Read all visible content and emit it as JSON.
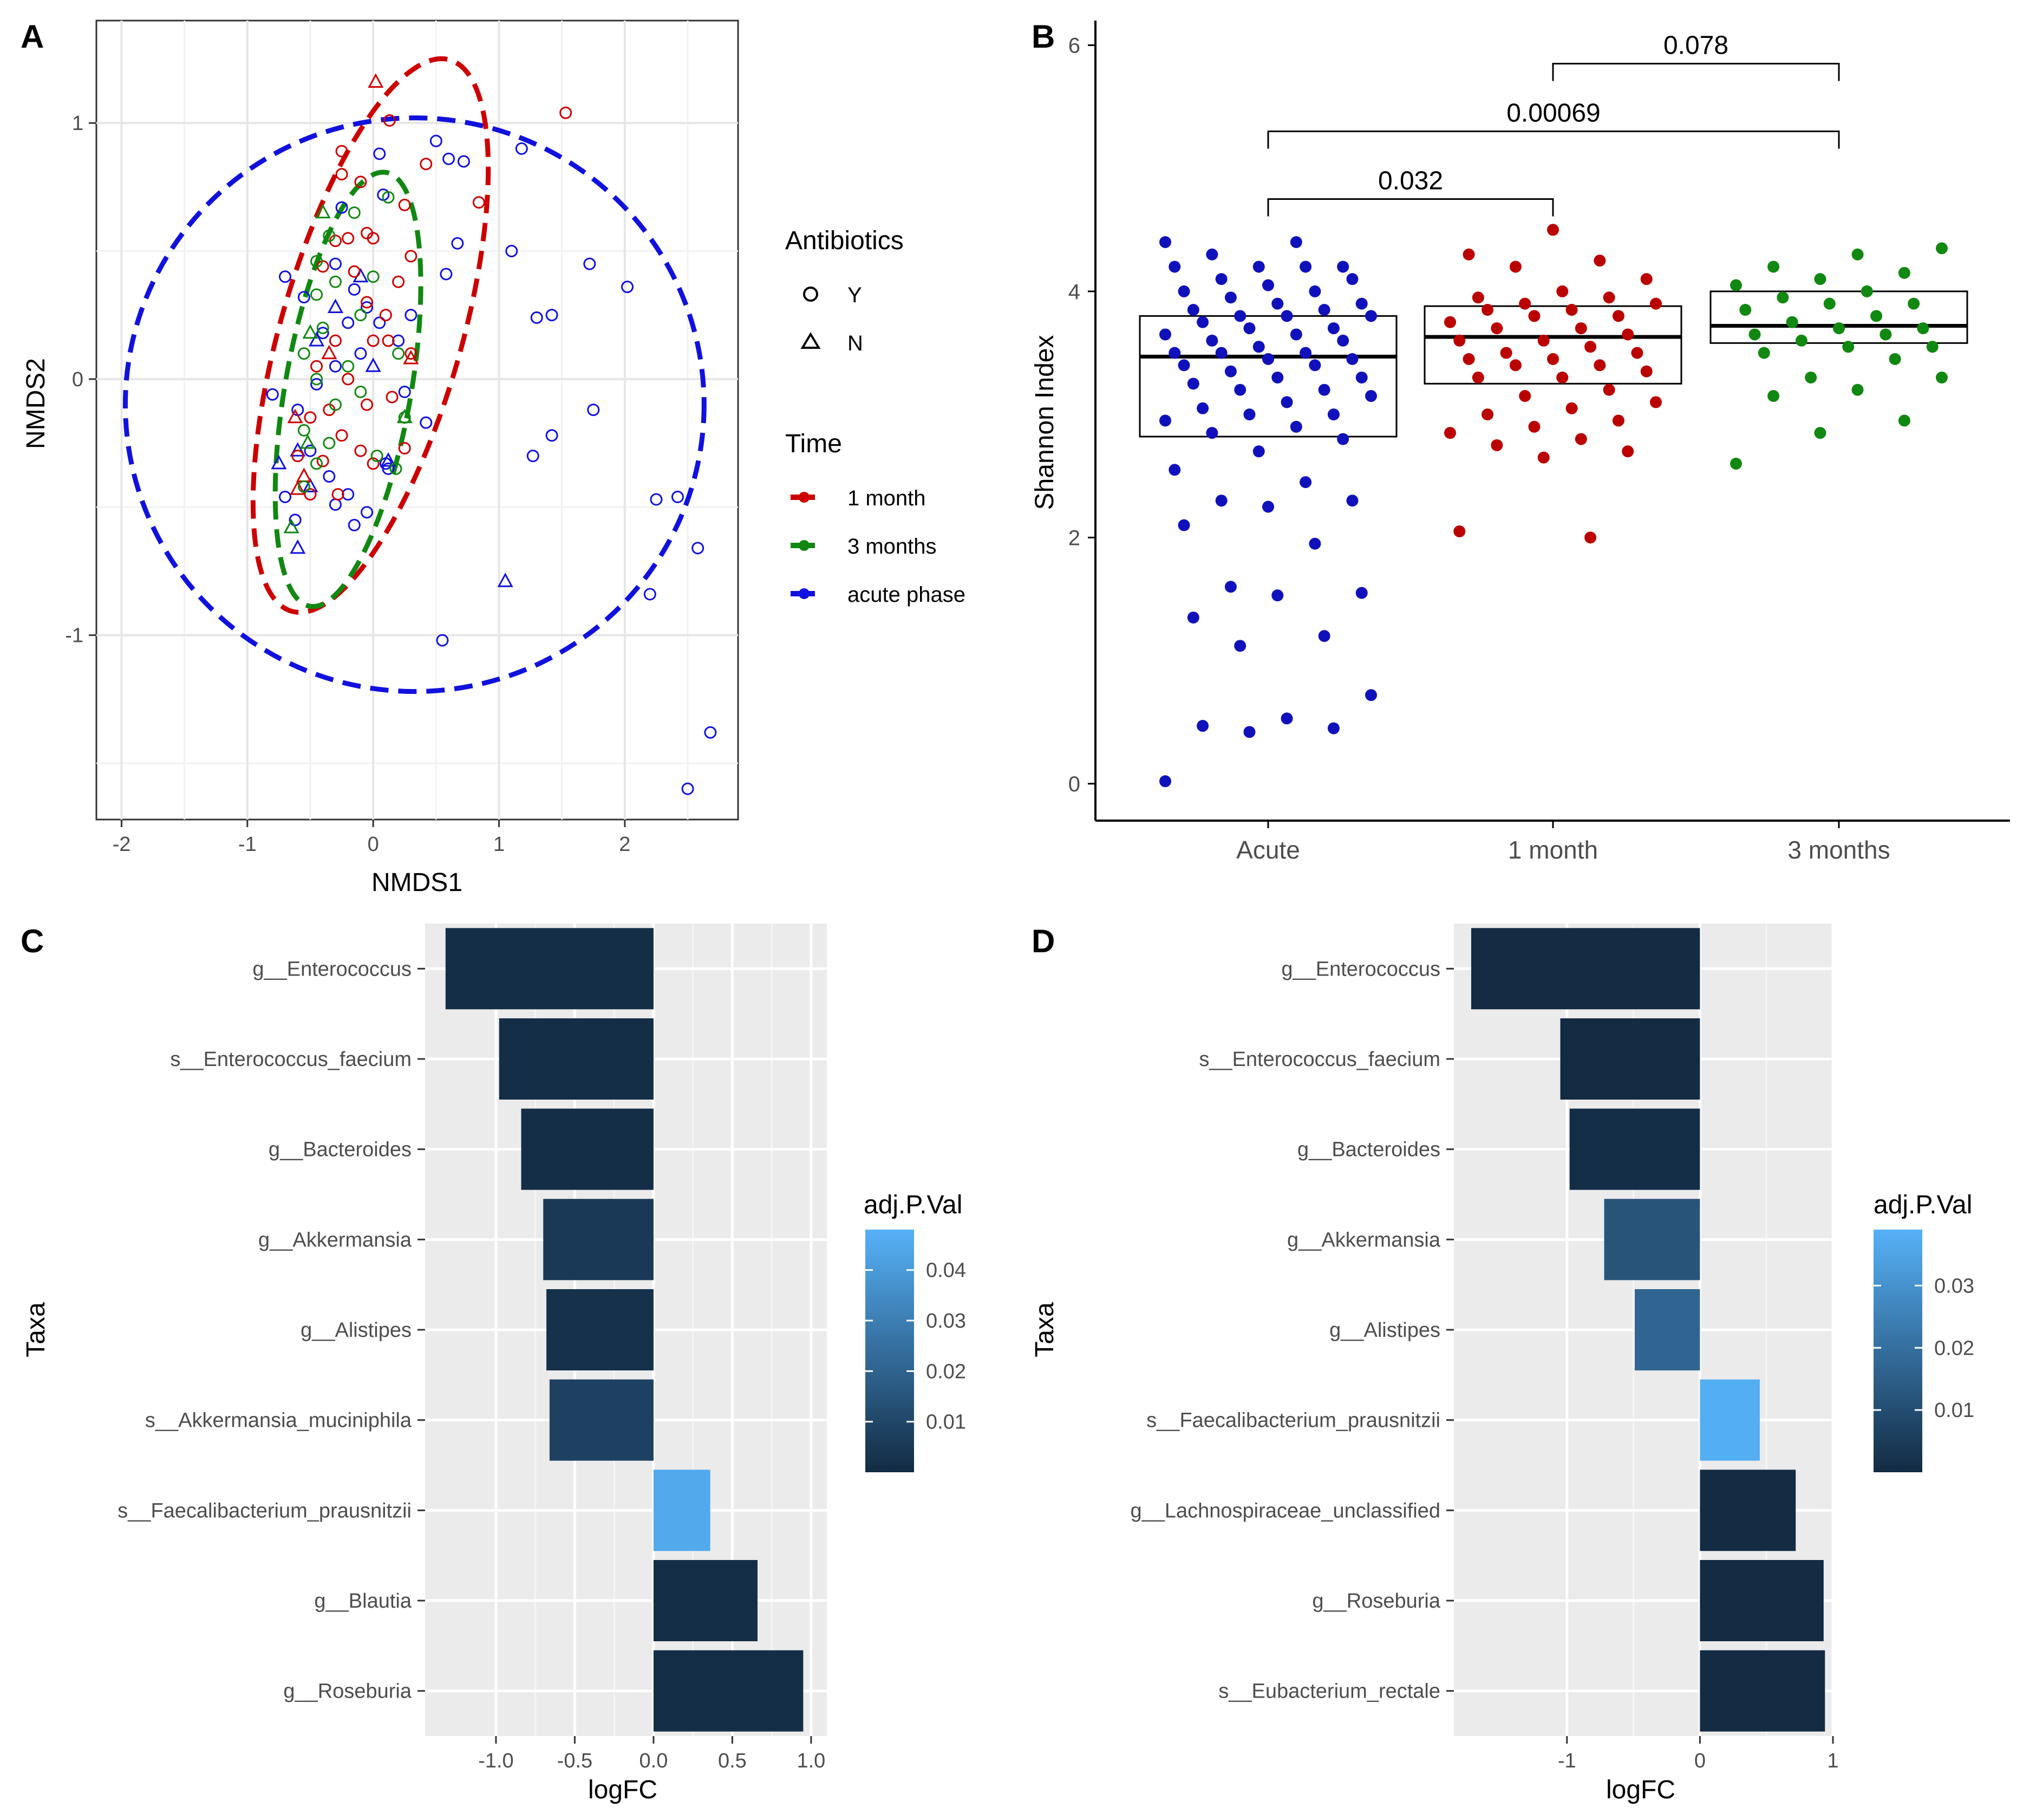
{
  "chart_data": [
    {
      "panel": "A",
      "type": "scatter",
      "xlabel": "NMDS1",
      "ylabel": "NMDS2",
      "xlim": [
        -2.2,
        2.9
      ],
      "ylim": [
        -1.72,
        1.4
      ],
      "xticks": [
        -2,
        -1,
        0,
        1,
        2
      ],
      "yticks": [
        -1,
        0,
        1
      ],
      "grid": true,
      "legend": {
        "antibiotics_title": "Antibiotics",
        "antibiotics": [
          {
            "label": "Y",
            "shape": "circle"
          },
          {
            "label": "N",
            "shape": "triangle"
          }
        ],
        "time_title": "Time",
        "time": [
          {
            "label": "1 month",
            "color": "#cc0000"
          },
          {
            "label": "3 months",
            "color": "#118811"
          },
          {
            "label": "acute phase",
            "color": "#1111dd"
          }
        ]
      },
      "ellipses": [
        {
          "series": "acute phase",
          "color": "#1111dd",
          "cx": 0.33,
          "cy": -0.1,
          "rx": 2.3,
          "ry": 1.12,
          "angle": 0
        },
        {
          "series": "1 month",
          "color": "#cc0000",
          "cx": -0.02,
          "cy": 0.17,
          "rx": 0.72,
          "ry": 1.12,
          "angle": 16
        },
        {
          "series": "3 months",
          "color": "#118811",
          "cx": -0.2,
          "cy": -0.04,
          "rx": 0.5,
          "ry": 0.86,
          "angle": 10
        }
      ],
      "series": [
        {
          "name": "acute phase",
          "color": "#1111dd",
          "points": [
            [
              0.5,
              0.93
            ],
            [
              0.6,
              0.86
            ],
            [
              0.72,
              0.85
            ],
            [
              1.18,
              0.9
            ],
            [
              0.05,
              0.88
            ],
            [
              0.58,
              0.41
            ],
            [
              0.67,
              0.53
            ],
            [
              1.1,
              0.5
            ],
            [
              1.72,
              0.45
            ],
            [
              2.02,
              0.36
            ],
            [
              1.3,
              0.24
            ],
            [
              1.42,
              0.25
            ],
            [
              1.75,
              -0.12
            ],
            [
              1.42,
              -0.22
            ],
            [
              1.27,
              -0.3
            ],
            [
              2.25,
              -0.47
            ],
            [
              2.42,
              -0.46
            ],
            [
              2.58,
              -0.66
            ],
            [
              2.2,
              -0.84
            ],
            [
              0.55,
              -1.02
            ],
            [
              2.68,
              -1.38
            ],
            [
              2.5,
              -1.6
            ],
            [
              -0.7,
              0.4
            ],
            [
              -0.55,
              0.32
            ],
            [
              -0.4,
              0.18
            ],
            [
              -0.3,
              0.45
            ],
            [
              -0.15,
              0.35
            ],
            [
              -0.05,
              0.28
            ],
            [
              0.05,
              0.22
            ],
            [
              0.2,
              0.15
            ],
            [
              0.3,
              0.25
            ],
            [
              0.42,
              -0.17
            ],
            [
              0.1,
              -0.33
            ],
            [
              0.25,
              -0.05
            ],
            [
              -0.2,
              0.22
            ],
            [
              -0.1,
              0.1
            ],
            [
              -0.3,
              0.05
            ],
            [
              -0.45,
              -0.02
            ],
            [
              -0.6,
              -0.12
            ],
            [
              -0.5,
              -0.28
            ],
            [
              -0.35,
              -0.38
            ],
            [
              -0.2,
              -0.45
            ],
            [
              -0.05,
              -0.52
            ],
            [
              -0.15,
              -0.57
            ],
            [
              -0.3,
              -0.49
            ],
            [
              -0.62,
              -0.55
            ],
            [
              -0.7,
              -0.46
            ],
            [
              -0.8,
              -0.06
            ],
            [
              0.08,
              0.72
            ],
            [
              -0.25,
              0.67
            ],
            [
              0.12,
              -0.35
            ]
          ],
          "triangles": [
            [
              -0.75,
              -0.33
            ],
            [
              -0.6,
              -0.28
            ],
            [
              -0.45,
              0.15
            ],
            [
              -0.3,
              0.28
            ],
            [
              -0.1,
              0.4
            ],
            [
              0.0,
              0.05
            ],
            [
              0.12,
              -0.32
            ],
            [
              -0.5,
              -0.42
            ],
            [
              -0.65,
              -0.58
            ],
            [
              -0.6,
              -0.66
            ],
            [
              1.05,
              -0.79
            ]
          ]
        },
        {
          "name": "1 month",
          "color": "#cc0000",
          "points": [
            [
              1.53,
              1.04
            ],
            [
              0.13,
              1.01
            ],
            [
              0.42,
              0.84
            ],
            [
              -0.25,
              0.89
            ],
            [
              -0.25,
              0.8
            ],
            [
              -0.1,
              0.77
            ],
            [
              0.84,
              0.69
            ],
            [
              0.25,
              0.68
            ],
            [
              -0.05,
              0.57
            ],
            [
              -0.2,
              0.55
            ],
            [
              -0.3,
              0.54
            ],
            [
              0.0,
              0.55
            ],
            [
              0.3,
              0.48
            ],
            [
              -0.4,
              0.44
            ],
            [
              -0.15,
              0.42
            ],
            [
              0.2,
              0.38
            ],
            [
              -0.05,
              0.3
            ],
            [
              0.1,
              0.25
            ],
            [
              0.0,
              0.15
            ],
            [
              0.12,
              0.15
            ],
            [
              -0.3,
              0.15
            ],
            [
              -0.45,
              0.05
            ],
            [
              -0.2,
              0.0
            ],
            [
              -0.05,
              -0.1
            ],
            [
              -0.35,
              -0.12
            ],
            [
              -0.5,
              -0.15
            ],
            [
              -0.25,
              -0.22
            ],
            [
              -0.1,
              -0.28
            ],
            [
              0.0,
              -0.33
            ],
            [
              0.25,
              -0.27
            ],
            [
              -0.4,
              -0.32
            ],
            [
              -0.6,
              -0.3
            ],
            [
              -0.28,
              -0.45
            ],
            [
              -0.5,
              -0.45
            ],
            [
              0.15,
              -0.07
            ],
            [
              0.3,
              0.1
            ]
          ],
          "triangles": [
            [
              0.02,
              1.16
            ],
            [
              -0.62,
              -0.15
            ],
            [
              -0.55,
              -0.38
            ],
            [
              -0.6,
              -0.43
            ],
            [
              -0.35,
              0.1
            ],
            [
              0.3,
              0.08
            ]
          ]
        },
        {
          "name": "3 months",
          "color": "#118811",
          "points": [
            [
              0.12,
              0.71
            ],
            [
              -0.15,
              0.65
            ],
            [
              -0.35,
              0.56
            ],
            [
              -0.45,
              0.46
            ],
            [
              -0.3,
              0.38
            ],
            [
              -0.45,
              0.33
            ],
            [
              0.0,
              0.4
            ],
            [
              -0.1,
              0.25
            ],
            [
              -0.4,
              0.2
            ],
            [
              -0.55,
              0.1
            ],
            [
              -0.2,
              0.05
            ],
            [
              -0.45,
              0.0
            ],
            [
              -0.3,
              -0.1
            ],
            [
              -0.55,
              -0.2
            ],
            [
              -0.35,
              -0.25
            ],
            [
              -0.45,
              -0.33
            ],
            [
              -0.55,
              -0.42
            ],
            [
              0.03,
              -0.3
            ],
            [
              0.18,
              -0.35
            ],
            [
              0.2,
              0.1
            ],
            [
              0.25,
              -0.15
            ],
            [
              -0.1,
              -0.05
            ]
          ],
          "triangles": [
            [
              -0.4,
              0.65
            ],
            [
              -0.5,
              0.18
            ],
            [
              -0.52,
              -0.25
            ],
            [
              -0.65,
              -0.58
            ],
            [
              0.25,
              -0.15
            ]
          ]
        }
      ]
    },
    {
      "panel": "B",
      "type": "box",
      "ylabel": "Shannon Index",
      "categories": [
        "Acute",
        "1 month",
        "3 months"
      ],
      "ylim": [
        -0.3,
        6.2
      ],
      "yticks": [
        0,
        2,
        4,
        6
      ],
      "boxes": [
        {
          "category": "Acute",
          "q1": 2.82,
          "median": 3.47,
          "q3": 3.8
        },
        {
          "category": "1 month",
          "q1": 3.25,
          "median": 3.63,
          "q3": 3.88
        },
        {
          "category": "3 months",
          "q1": 3.58,
          "median": 3.72,
          "q3": 4.0
        }
      ],
      "series": [
        {
          "name": "Acute",
          "color": "#1111bb",
          "values": [
            4.4,
            4.4,
            4.3,
            4.2,
            4.2,
            4.2,
            4.2,
            4.1,
            4.1,
            4.05,
            4.0,
            4.0,
            3.95,
            3.9,
            3.9,
            3.85,
            3.85,
            3.8,
            3.8,
            3.8,
            3.75,
            3.7,
            3.7,
            3.65,
            3.65,
            3.6,
            3.6,
            3.55,
            3.5,
            3.5,
            3.5,
            3.45,
            3.45,
            3.4,
            3.4,
            3.35,
            3.3,
            3.3,
            3.25,
            3.2,
            3.2,
            3.15,
            3.1,
            3.05,
            3.0,
            3.0,
            2.95,
            2.9,
            2.85,
            2.8,
            2.7,
            2.55,
            2.45,
            2.3,
            2.3,
            2.25,
            2.1,
            1.95,
            1.6,
            1.55,
            1.53,
            1.35,
            1.2,
            1.12,
            0.72,
            0.53,
            0.47,
            0.45,
            0.42,
            0.02
          ]
        },
        {
          "name": "1 month",
          "color": "#bb0000",
          "values": [
            4.5,
            4.3,
            4.25,
            4.2,
            4.1,
            4.0,
            3.95,
            3.95,
            3.9,
            3.9,
            3.85,
            3.85,
            3.8,
            3.8,
            3.75,
            3.7,
            3.7,
            3.65,
            3.6,
            3.6,
            3.55,
            3.5,
            3.5,
            3.45,
            3.45,
            3.4,
            3.4,
            3.35,
            3.3,
            3.3,
            3.2,
            3.15,
            3.1,
            3.05,
            3.0,
            2.95,
            2.9,
            2.85,
            2.8,
            2.75,
            2.7,
            2.65,
            2.05,
            2.0
          ]
        },
        {
          "name": "3 months",
          "color": "#118811",
          "values": [
            4.35,
            4.3,
            4.2,
            4.15,
            4.1,
            4.05,
            4.0,
            3.95,
            3.9,
            3.9,
            3.85,
            3.8,
            3.75,
            3.7,
            3.7,
            3.65,
            3.65,
            3.6,
            3.55,
            3.55,
            3.5,
            3.45,
            3.3,
            3.3,
            3.2,
            3.15,
            2.95,
            2.85,
            2.6
          ]
        }
      ],
      "comparisons": [
        {
          "from": "Acute",
          "to": "1 month",
          "label": "0.032",
          "y": 4.75
        },
        {
          "from": "Acute",
          "to": "3 months",
          "label": "0.00069",
          "y": 5.3
        },
        {
          "from": "1 month",
          "to": "3 months",
          "label": "0.078",
          "y": 5.85
        }
      ]
    },
    {
      "panel": "C",
      "type": "bar",
      "orientation": "horizontal",
      "xlabel": "logFC",
      "ylabel": "Taxa",
      "xlim": [
        -1.45,
        1.1
      ],
      "xticks": [
        -1.0,
        -0.5,
        0.0,
        0.5,
        1.0
      ],
      "xtick_labels": [
        "-1.0",
        "-0.5",
        "0.0",
        "0.5",
        "1.0"
      ],
      "categories": [
        "g__Enterococcus",
        "s__Enterococcus_faecium",
        "g__Bacteroides",
        "g__Akkermansia",
        "g__Alistipes",
        "s__Akkermansia_muciniphila",
        "s__Faecalibacterium_prausnitzii",
        "g__Blautia",
        "g__Roseburia"
      ],
      "values": [
        -1.32,
        -0.98,
        -0.84,
        -0.7,
        -0.68,
        -0.66,
        0.36,
        0.66,
        0.95
      ],
      "color_values": [
        0.001,
        0.001,
        0.001,
        0.005,
        0.002,
        0.008,
        0.045,
        0.001,
        0.001
      ],
      "colorbar": {
        "title": "adj.P.Val",
        "min": 0.0,
        "max": 0.048,
        "ticks": [
          0.01,
          0.02,
          0.03,
          0.04
        ],
        "tick_labels": [
          "0.01",
          "0.02",
          "0.03",
          "0.04"
        ],
        "low_color": "#132b43",
        "high_color": "#56b1f7"
      }
    },
    {
      "panel": "D",
      "type": "bar",
      "orientation": "horizontal",
      "xlabel": "logFC",
      "ylabel": "Taxa",
      "xlim": [
        -1.85,
        1.0
      ],
      "xticks": [
        -1,
        0,
        1
      ],
      "xtick_labels": [
        "-1",
        "0",
        "1"
      ],
      "categories": [
        "g__Enterococcus",
        "s__Enterococcus_faecium",
        "g__Bacteroides",
        "g__Akkermansia",
        "g__Alistipes",
        "s__Faecalibacterium_prausnitzii",
        "g__Lachnospiraceae_unclassified",
        "g__Roseburia",
        "s__Eubacterium_rectale"
      ],
      "values": [
        -1.72,
        -1.05,
        -0.98,
        -0.72,
        -0.49,
        0.45,
        0.72,
        0.93,
        0.94
      ],
      "color_values": [
        0.0,
        0.0,
        0.001,
        0.012,
        0.017,
        0.038,
        0.0,
        0.0,
        0.0
      ],
      "colorbar": {
        "title": "adj.P.Val",
        "min": 0.0,
        "max": 0.039,
        "ticks": [
          0.01,
          0.02,
          0.03
        ],
        "tick_labels": [
          "0.01",
          "0.02",
          "0.03"
        ],
        "low_color": "#132b43",
        "high_color": "#56b1f7"
      }
    }
  ],
  "panel_labels": [
    "A",
    "B",
    "C",
    "D"
  ]
}
